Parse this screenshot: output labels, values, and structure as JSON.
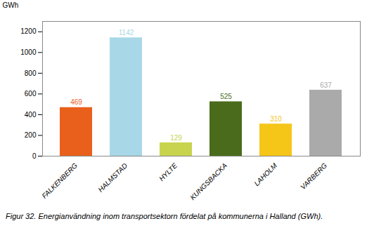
{
  "chart_data": {
    "type": "bar",
    "categories": [
      "FALKENBERG",
      "HALMSTAD",
      "HYLTE",
      "KUNGSBACKA",
      "LAHOLM",
      "VARBERG"
    ],
    "values": [
      469,
      1142,
      129,
      525,
      310,
      637
    ],
    "colors": [
      "#E8601C",
      "#A8D8E8",
      "#C8D44E",
      "#4A6B1C",
      "#F5C518",
      "#AAAAAA"
    ],
    "ylabel": "GWh",
    "ylim": [
      0,
      1300
    ],
    "yticks": [
      0,
      200,
      400,
      600,
      800,
      1000,
      1200
    ],
    "caption": "Figur 32. Energianvändning inom transportsektorn fördelat på kommunerna i Halland (GWh).",
    "data_labels": true,
    "grid": false
  }
}
